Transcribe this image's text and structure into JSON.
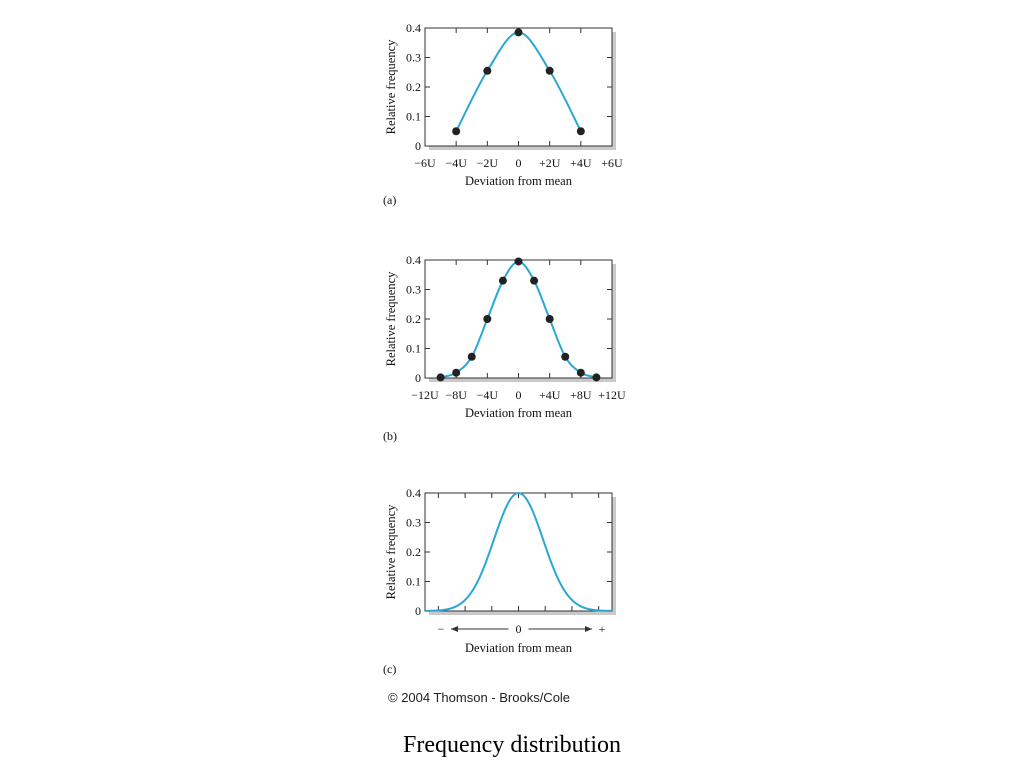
{
  "chart_data": [
    {
      "type": "line",
      "panel_label": "(a)",
      "xlabel": "Deviation from mean",
      "ylabel": "Relative frequency",
      "xlim": [
        -6,
        6
      ],
      "ylim": [
        0,
        0.4
      ],
      "y_ticks": [
        0,
        0.1,
        0.2,
        0.3,
        0.4
      ],
      "y_tick_labels": [
        "0",
        "0.1",
        "0.2",
        "0.3",
        "0.4"
      ],
      "x_ticks": [
        -6,
        -4,
        -2,
        0,
        2,
        4,
        6
      ],
      "x_tick_labels": [
        "−6U",
        "−4U",
        "−2U",
        "0",
        "+2U",
        "+4U",
        "+6U"
      ],
      "series": [
        {
          "kind": "points",
          "x": [
            -4,
            -2,
            0,
            2,
            4
          ],
          "y": [
            0.05,
            0.255,
            0.385,
            0.255,
            0.05
          ]
        }
      ],
      "curve_color": "#2aa7d4",
      "point_color": "#222222"
    },
    {
      "type": "line",
      "panel_label": "(b)",
      "xlabel": "Deviation from mean",
      "ylabel": "Relative frequency",
      "xlim": [
        -12,
        12
      ],
      "ylim": [
        0,
        0.4
      ],
      "y_ticks": [
        0,
        0.1,
        0.2,
        0.3,
        0.4
      ],
      "y_tick_labels": [
        "0",
        "0.1",
        "0.2",
        "0.3",
        "0.4"
      ],
      "x_ticks": [
        -12,
        -8,
        -4,
        0,
        4,
        8,
        12
      ],
      "x_tick_labels": [
        "−12U",
        "−8U",
        "−4U",
        "0",
        "+4U",
        "+8U",
        "+12U"
      ],
      "series": [
        {
          "kind": "points",
          "x": [
            -10,
            -8,
            -6,
            -4,
            -2,
            0,
            2,
            4,
            6,
            8,
            10
          ],
          "y": [
            0.002,
            0.018,
            0.072,
            0.2,
            0.33,
            0.395,
            0.33,
            0.2,
            0.072,
            0.018,
            0.002
          ]
        }
      ],
      "curve_color": "#2aa7d4",
      "point_color": "#222222"
    },
    {
      "type": "line",
      "panel_label": "(c)",
      "xlabel": "Deviation from mean",
      "ylabel": "Relative frequency",
      "xlim": [
        -4,
        4
      ],
      "ylim": [
        0,
        0.4
      ],
      "y_ticks": [
        0,
        0.1,
        0.2,
        0.3,
        0.4
      ],
      "y_tick_labels": [
        "0",
        "0.1",
        "0.2",
        "0.3",
        "0.4"
      ],
      "x_axis_text": {
        "minus": "−",
        "zero": "0",
        "plus": "+"
      },
      "series": [
        {
          "kind": "curve",
          "function": "normal",
          "mean": 0,
          "peak": 0.4
        }
      ],
      "curve_color": "#2aa7d4"
    }
  ],
  "copyright": "© 2004 Thomson - Brooks/Cole",
  "caption": "Frequency distribution"
}
